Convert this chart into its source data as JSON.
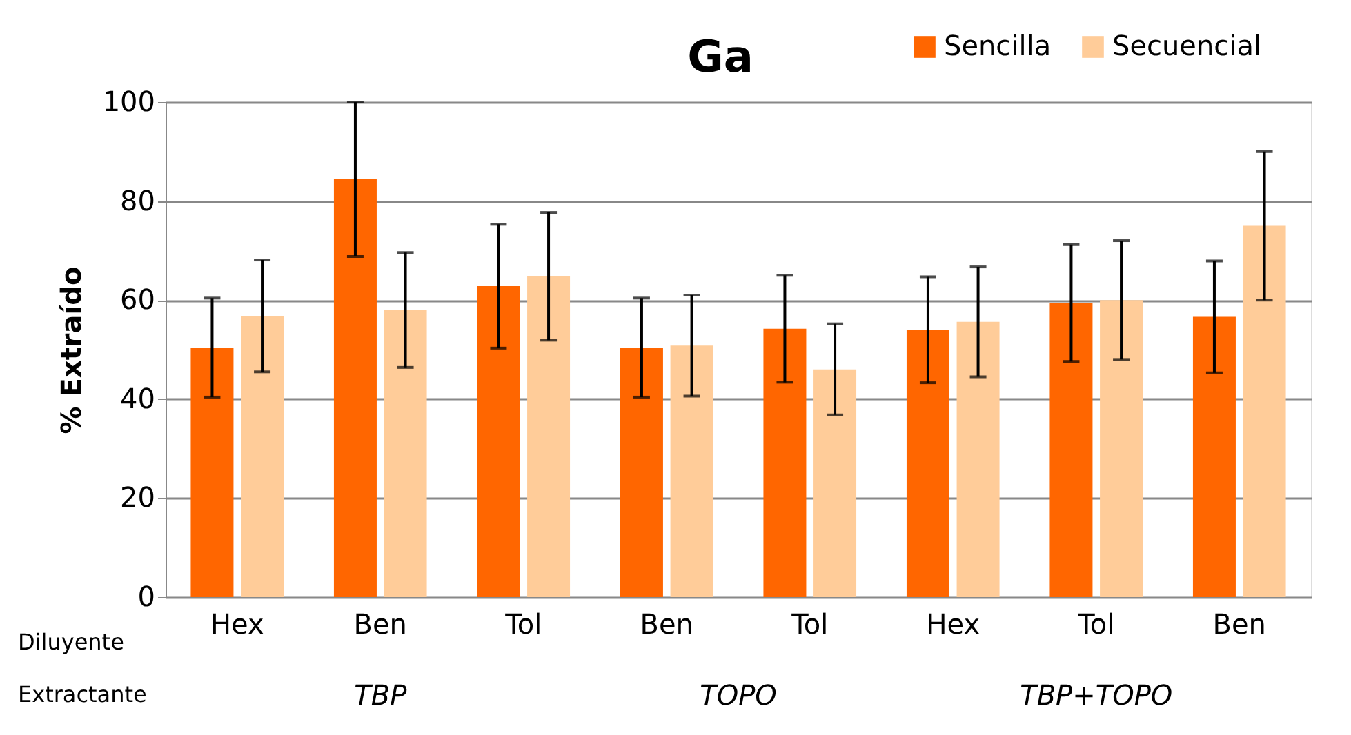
{
  "chart_data": {
    "type": "bar",
    "title": "Ga",
    "ylabel": "% Extraído",
    "categories": [
      "Hex",
      "Ben",
      "Tol",
      "Ben",
      "Tol",
      "Hex",
      "Tol",
      "Ben"
    ],
    "series": [
      {
        "name": "Sencilla",
        "color": "#ff6600",
        "values": [
          50.4,
          84.4,
          62.8,
          50.4,
          54.2,
          54.0,
          59.4,
          56.6
        ],
        "errors": [
          10,
          15.6,
          12.5,
          10,
          10.8,
          10.7,
          11.8,
          11.3
        ]
      },
      {
        "name": "Secuencial",
        "color": "#ffcc99",
        "values": [
          56.8,
          58.0,
          64.8,
          50.8,
          46.0,
          55.6,
          60.0,
          75.0
        ],
        "errors": [
          11.3,
          11.6,
          12.9,
          10.2,
          9.2,
          11.1,
          12.0,
          15.0
        ]
      }
    ],
    "ylim": [
      0,
      100
    ],
    "yticks": [
      0,
      20,
      40,
      60,
      80,
      100
    ],
    "grid": "y",
    "legend": "top right",
    "annotations": [
      "Diluyente",
      "Extractante",
      "TBP",
      "TOPO",
      "TBP+TOPO"
    ]
  }
}
